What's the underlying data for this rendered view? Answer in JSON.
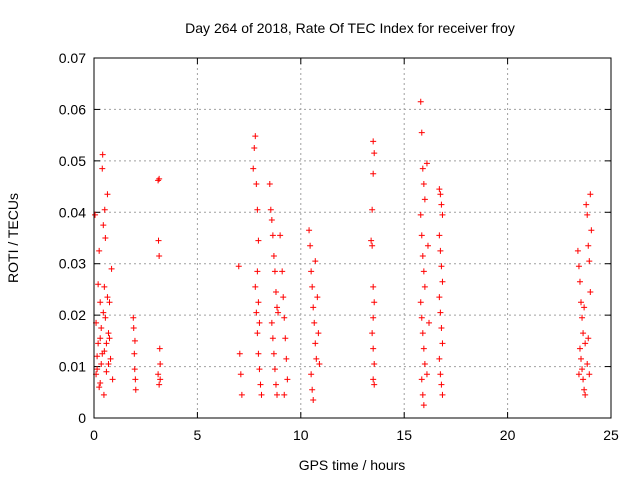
{
  "chart_data": {
    "type": "scatter",
    "title": "Day 264 of 2018, Rate Of TEC Index for receiver froy",
    "xlabel": "GPS time / hours",
    "ylabel": "ROTI / TECUs",
    "xlim": [
      0,
      25
    ],
    "ylim": [
      0,
      0.07
    ],
    "xticks": [
      0,
      5,
      10,
      15,
      20,
      25
    ],
    "xtick_labels": [
      "0",
      "5",
      "10",
      "15",
      "20",
      "25"
    ],
    "yticks": [
      0,
      0.01,
      0.02,
      0.03,
      0.04,
      0.05,
      0.06,
      0.07
    ],
    "ytick_labels": [
      "0",
      "0.01",
      "0.02",
      "0.03",
      "0.04",
      "0.05",
      "0.06",
      "0.07"
    ],
    "grid": true,
    "marker": "+",
    "color": "#ff0000",
    "series": [
      {
        "name": "ROTI",
        "points": [
          [
            0.05,
            0.0395
          ],
          [
            0.1,
            0.0085
          ],
          [
            0.15,
            0.012
          ],
          [
            0.2,
            0.026
          ],
          [
            0.25,
            0.006
          ],
          [
            0.3,
            0.0155
          ],
          [
            0.35,
            0.0105
          ],
          [
            0.4,
            0.0485
          ],
          [
            0.42,
            0.0512
          ],
          [
            0.45,
            0.0205
          ],
          [
            0.5,
            0.013
          ],
          [
            0.55,
            0.035
          ],
          [
            0.6,
            0.009
          ],
          [
            0.65,
            0.0435
          ],
          [
            0.7,
            0.0165
          ],
          [
            0.75,
            0.0225
          ],
          [
            0.8,
            0.0115
          ],
          [
            0.85,
            0.029
          ],
          [
            0.9,
            0.0075
          ],
          [
            0.1,
            0.0185
          ],
          [
            0.2,
            0.0145
          ],
          [
            0.3,
            0.0225
          ],
          [
            0.4,
            0.0125
          ],
          [
            0.5,
            0.0255
          ],
          [
            0.6,
            0.0145
          ],
          [
            0.7,
            0.0105
          ],
          [
            0.35,
            0.0175
          ],
          [
            0.55,
            0.0195
          ],
          [
            0.15,
            0.0095
          ],
          [
            0.25,
            0.0325
          ],
          [
            0.65,
            0.0235
          ],
          [
            0.45,
            0.0375
          ],
          [
            0.75,
            0.0155
          ],
          [
            0.52,
            0.0405
          ],
          [
            0.3,
            0.0068
          ],
          [
            0.48,
            0.0045
          ],
          [
            1.9,
            0.0195
          ],
          [
            1.92,
            0.0175
          ],
          [
            1.95,
            0.0125
          ],
          [
            1.97,
            0.0095
          ],
          [
            2.0,
            0.0075
          ],
          [
            2.02,
            0.0055
          ],
          [
            1.98,
            0.015
          ],
          [
            3.1,
            0.0462
          ],
          [
            3.15,
            0.0465
          ],
          [
            3.12,
            0.0345
          ],
          [
            3.15,
            0.0315
          ],
          [
            3.18,
            0.0135
          ],
          [
            3.2,
            0.0105
          ],
          [
            3.1,
            0.0085
          ],
          [
            3.15,
            0.0065
          ],
          [
            3.2,
            0.0075
          ],
          [
            7.0,
            0.0295
          ],
          [
            7.05,
            0.0125
          ],
          [
            7.1,
            0.0085
          ],
          [
            7.15,
            0.0045
          ],
          [
            7.7,
            0.0485
          ],
          [
            7.75,
            0.0525
          ],
          [
            7.8,
            0.0548
          ],
          [
            7.85,
            0.0455
          ],
          [
            7.9,
            0.0405
          ],
          [
            7.95,
            0.0345
          ],
          [
            7.8,
            0.0255
          ],
          [
            7.85,
            0.0205
          ],
          [
            7.9,
            0.0165
          ],
          [
            7.95,
            0.0125
          ],
          [
            8.0,
            0.0095
          ],
          [
            8.05,
            0.0065
          ],
          [
            8.1,
            0.0045
          ],
          [
            7.9,
            0.0285
          ],
          [
            7.95,
            0.0225
          ],
          [
            8.0,
            0.0185
          ],
          [
            8.5,
            0.0455
          ],
          [
            8.55,
            0.0405
          ],
          [
            8.6,
            0.0385
          ],
          [
            8.65,
            0.0355
          ],
          [
            8.7,
            0.0315
          ],
          [
            8.75,
            0.0285
          ],
          [
            8.8,
            0.0245
          ],
          [
            8.85,
            0.0215
          ],
          [
            8.6,
            0.0185
          ],
          [
            8.65,
            0.0155
          ],
          [
            8.7,
            0.0125
          ],
          [
            8.75,
            0.0095
          ],
          [
            8.8,
            0.0065
          ],
          [
            8.85,
            0.0045
          ],
          [
            8.9,
            0.0205
          ],
          [
            9.0,
            0.0355
          ],
          [
            9.1,
            0.0285
          ],
          [
            9.15,
            0.0235
          ],
          [
            9.2,
            0.0195
          ],
          [
            9.25,
            0.0155
          ],
          [
            9.3,
            0.0115
          ],
          [
            9.35,
            0.0075
          ],
          [
            9.2,
            0.0045
          ],
          [
            10.4,
            0.0365
          ],
          [
            10.45,
            0.0335
          ],
          [
            10.5,
            0.0285
          ],
          [
            10.55,
            0.0255
          ],
          [
            10.6,
            0.0215
          ],
          [
            10.65,
            0.0185
          ],
          [
            10.7,
            0.0145
          ],
          [
            10.75,
            0.0115
          ],
          [
            10.5,
            0.0085
          ],
          [
            10.55,
            0.0055
          ],
          [
            10.6,
            0.0035
          ],
          [
            10.8,
            0.0235
          ],
          [
            10.85,
            0.0165
          ],
          [
            10.9,
            0.0105
          ],
          [
            10.7,
            0.0305
          ],
          [
            13.5,
            0.0538
          ],
          [
            13.55,
            0.0515
          ],
          [
            13.5,
            0.0475
          ],
          [
            13.45,
            0.0405
          ],
          [
            13.4,
            0.0345
          ],
          [
            13.45,
            0.0335
          ],
          [
            13.5,
            0.0255
          ],
          [
            13.55,
            0.0225
          ],
          [
            13.5,
            0.0195
          ],
          [
            13.45,
            0.0165
          ],
          [
            13.5,
            0.0135
          ],
          [
            13.55,
            0.0105
          ],
          [
            13.5,
            0.0075
          ],
          [
            13.55,
            0.0065
          ],
          [
            15.8,
            0.0615
          ],
          [
            15.85,
            0.0555
          ],
          [
            15.9,
            0.0485
          ],
          [
            15.95,
            0.0455
          ],
          [
            16.0,
            0.0425
          ],
          [
            15.8,
            0.0395
          ],
          [
            15.85,
            0.0355
          ],
          [
            15.9,
            0.0315
          ],
          [
            15.95,
            0.0285
          ],
          [
            16.0,
            0.0255
          ],
          [
            15.8,
            0.0225
          ],
          [
            15.85,
            0.0195
          ],
          [
            15.9,
            0.0165
          ],
          [
            15.95,
            0.0135
          ],
          [
            16.0,
            0.0105
          ],
          [
            15.85,
            0.0075
          ],
          [
            15.9,
            0.0045
          ],
          [
            15.95,
            0.0025
          ],
          [
            16.1,
            0.0495
          ],
          [
            16.15,
            0.0335
          ],
          [
            16.2,
            0.0185
          ],
          [
            16.1,
            0.0085
          ],
          [
            16.7,
            0.0445
          ],
          [
            16.75,
            0.0435
          ],
          [
            16.8,
            0.0415
          ],
          [
            16.85,
            0.0395
          ],
          [
            16.7,
            0.0355
          ],
          [
            16.75,
            0.0325
          ],
          [
            16.8,
            0.0295
          ],
          [
            16.85,
            0.0265
          ],
          [
            16.7,
            0.0235
          ],
          [
            16.75,
            0.0205
          ],
          [
            16.8,
            0.0175
          ],
          [
            16.85,
            0.0145
          ],
          [
            16.7,
            0.0115
          ],
          [
            16.75,
            0.0085
          ],
          [
            16.8,
            0.0065
          ],
          [
            16.85,
            0.0045
          ],
          [
            23.4,
            0.0325
          ],
          [
            23.45,
            0.0295
          ],
          [
            23.5,
            0.0265
          ],
          [
            23.55,
            0.0225
          ],
          [
            23.6,
            0.0195
          ],
          [
            23.65,
            0.0165
          ],
          [
            23.5,
            0.0135
          ],
          [
            23.55,
            0.0115
          ],
          [
            23.6,
            0.0095
          ],
          [
            23.65,
            0.0075
          ],
          [
            23.7,
            0.0055
          ],
          [
            23.75,
            0.0045
          ],
          [
            23.8,
            0.0415
          ],
          [
            23.85,
            0.0395
          ],
          [
            23.9,
            0.0335
          ],
          [
            23.95,
            0.0305
          ],
          [
            24.0,
            0.0435
          ],
          [
            24.05,
            0.0365
          ],
          [
            23.7,
            0.0215
          ],
          [
            23.75,
            0.0145
          ],
          [
            23.85,
            0.0105
          ],
          [
            23.9,
            0.0155
          ],
          [
            23.95,
            0.0085
          ],
          [
            24.0,
            0.0245
          ],
          [
            23.45,
            0.0085
          ]
        ]
      }
    ]
  }
}
